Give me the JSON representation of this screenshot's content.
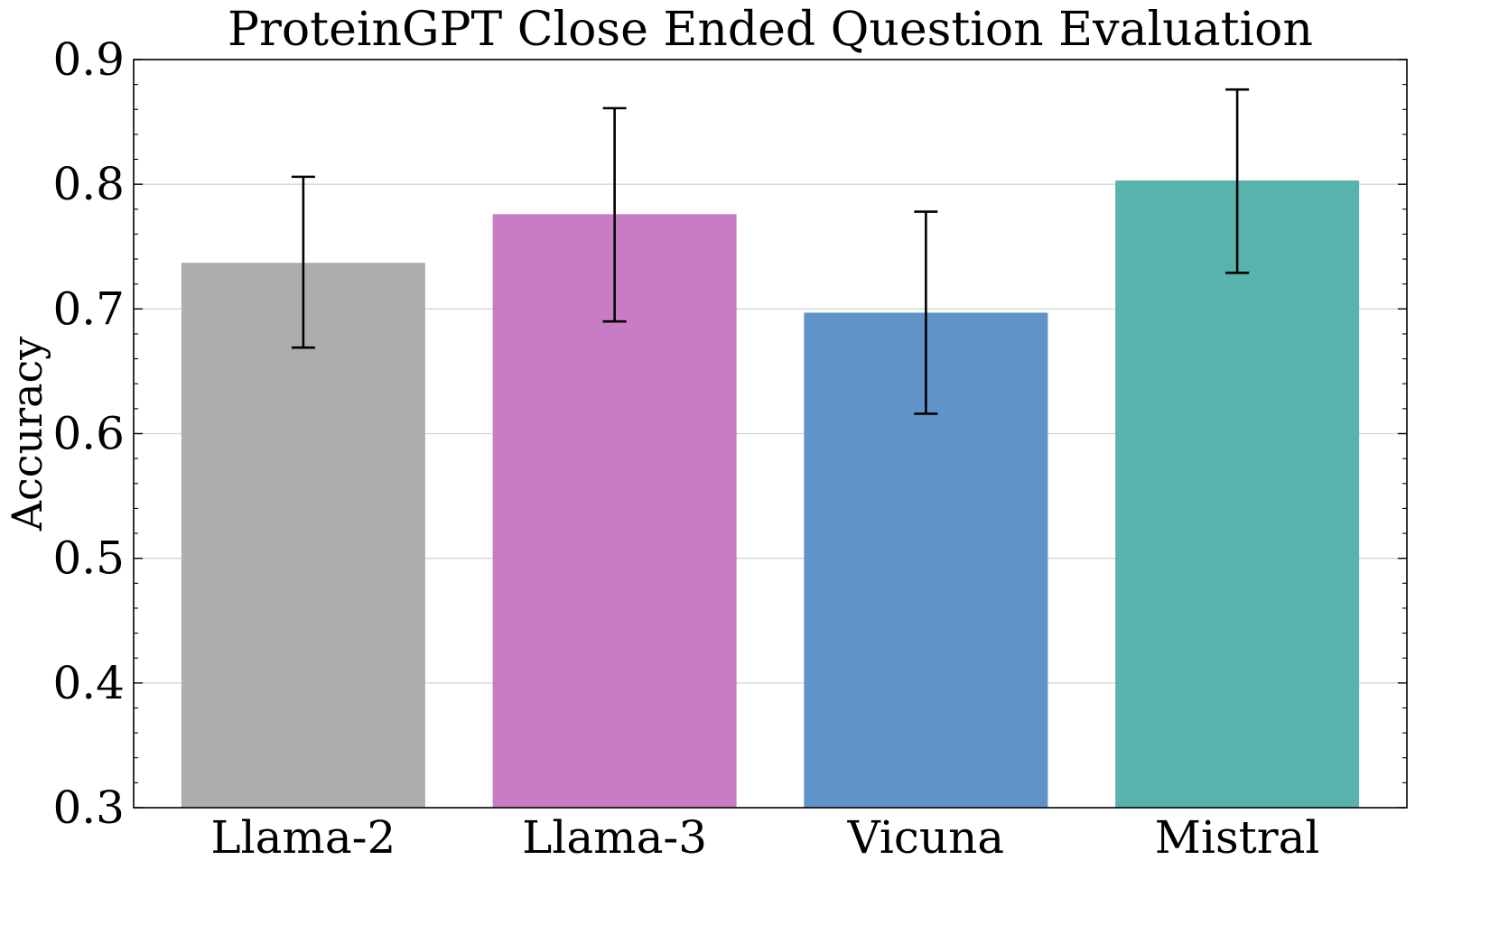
{
  "chart_data": {
    "type": "bar",
    "title": "ProteinGPT Close Ended Question Evaluation",
    "xlabel": "",
    "ylabel": "Accuracy",
    "categories": [
      "Llama-2",
      "Llama-3",
      "Vicuna",
      "Mistral"
    ],
    "values": [
      0.737,
      0.776,
      0.697,
      0.803
    ],
    "error_low": [
      0.669,
      0.69,
      0.616,
      0.729
    ],
    "error_high": [
      0.806,
      0.861,
      0.778,
      0.876
    ],
    "colors": [
      "#adadad",
      "#c87cc3",
      "#6094c8",
      "#57b3ab"
    ],
    "ylim": [
      0.3,
      0.9
    ],
    "yticks": [
      "0.3",
      "0.4",
      "0.5",
      "0.6",
      "0.7",
      "0.8",
      "0.9"
    ],
    "ytick_values": [
      0.3,
      0.4,
      0.5,
      0.6,
      0.7,
      0.8,
      0.9
    ],
    "grid": "horizontal",
    "legend": "none"
  }
}
